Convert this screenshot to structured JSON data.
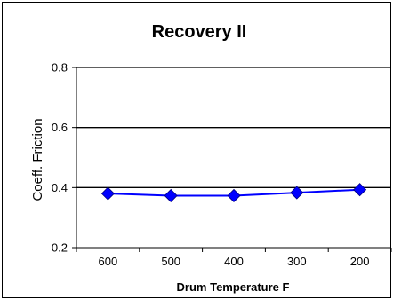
{
  "chart_data": {
    "type": "line",
    "title": "Recovery II",
    "xlabel": "Drum Temperature F",
    "ylabel": "Coeff. Friction",
    "categories": [
      "600",
      "500",
      "400",
      "300",
      "200"
    ],
    "series": [
      {
        "values": [
          0.38,
          0.373,
          0.373,
          0.383,
          0.393
        ],
        "color": "#0000ff",
        "marker": "diamond"
      }
    ],
    "ylim": [
      0.2,
      0.8
    ],
    "yticks": [
      "0.2",
      "0.4",
      "0.6",
      "0.8"
    ],
    "gridlines": "horizontal major",
    "legend": "none"
  }
}
